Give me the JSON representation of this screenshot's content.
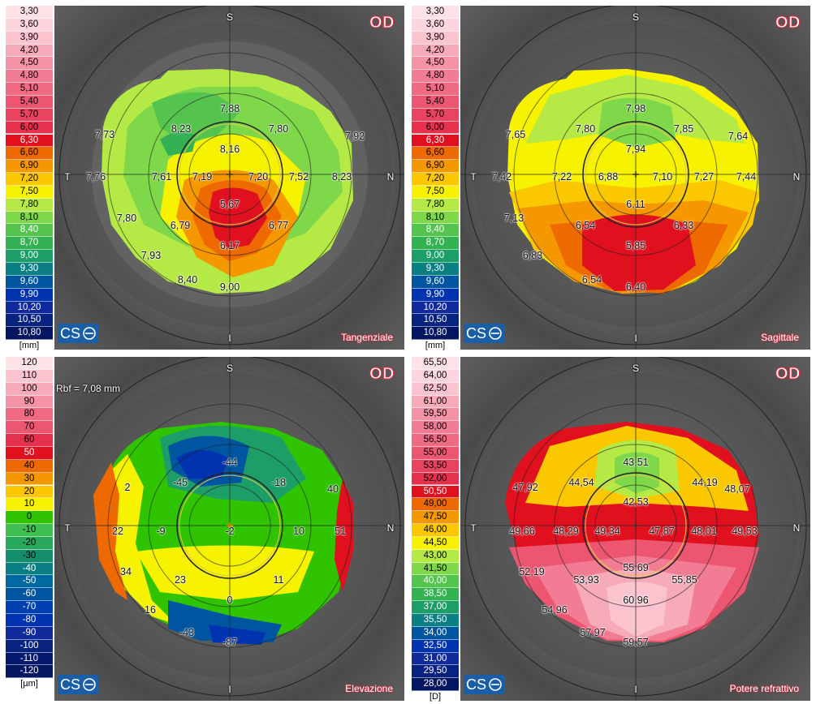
{
  "panels": [
    {
      "title": "Tangenziale",
      "eye": "OD",
      "brand": "CS",
      "unit": "[mm]",
      "scale_values": [
        "3,30",
        "3,60",
        "3,90",
        "4,20",
        "4,50",
        "4,80",
        "5,10",
        "5,40",
        "5,70",
        "6,00",
        "6,30",
        "6,60",
        "6,90",
        "7,20",
        "7,50",
        "7,80",
        "8,10",
        "8,40",
        "8,70",
        "9,00",
        "9,30",
        "9,60",
        "9,90",
        "10,20",
        "10,50",
        "10,80"
      ],
      "axes": {
        "top": "S",
        "bottom": "I",
        "left": "T",
        "right": "N"
      },
      "labels": [
        "7,88",
        "8,23",
        "7,80",
        "7,73",
        "7,92",
        "8,16",
        "7,76",
        "7,61",
        "7,19",
        "7,20",
        "7,52",
        "8,23",
        "5,67",
        "6,79",
        "6,77",
        "7,80",
        "6,17",
        "7,93",
        "8,40",
        "9,00"
      ]
    },
    {
      "title": "Sagittale",
      "eye": "OD",
      "brand": "CS",
      "unit": "[mm]",
      "scale_values": [
        "3,30",
        "3,60",
        "3,90",
        "4,20",
        "4,50",
        "4,80",
        "5,10",
        "5,40",
        "5,70",
        "6,00",
        "6,30",
        "6,60",
        "6,90",
        "7,20",
        "7,50",
        "7,80",
        "8,10",
        "8,40",
        "8,70",
        "9,00",
        "9,30",
        "9,60",
        "9,90",
        "10,20",
        "10,50",
        "10,80"
      ],
      "axes": {
        "top": "S",
        "bottom": "I",
        "left": "T",
        "right": "N"
      },
      "labels": [
        "7,98",
        "7,65",
        "7,80",
        "7,85",
        "7,64",
        "7,94",
        "7,42",
        "7,22",
        "6,88",
        "7,10",
        "7,27",
        "7,44",
        "6,11",
        "7,13",
        "6,54",
        "6,33",
        "5,85",
        "6,83",
        "6,54",
        "6,40"
      ]
    },
    {
      "title": "Elevazione",
      "eye": "OD",
      "brand": "CS",
      "unit": "[µm]",
      "rbf": "Rbf = 7,08 mm",
      "scale_values": [
        "120",
        "110",
        "100",
        "90",
        "80",
        "70",
        "60",
        "50",
        "40",
        "30",
        "20",
        "10",
        "0",
        "-10",
        "-20",
        "-30",
        "-40",
        "-50",
        "-60",
        "-70",
        "-80",
        "-90",
        "-100",
        "-110",
        "-120"
      ],
      "axes": {
        "top": "S",
        "bottom": "I",
        "left": "T",
        "right": "N"
      },
      "labels": [
        "-44",
        "-45",
        "-18",
        "2",
        "40",
        "22",
        "-9",
        "-2",
        "10",
        "51",
        "34",
        "23",
        "11",
        "16",
        "0",
        "-43",
        "-87"
      ]
    },
    {
      "title": "Potere refrattivo",
      "eye": "OD",
      "brand": "CS",
      "unit": "[D]",
      "scale_values": [
        "65,50",
        "64,00",
        "62,50",
        "61,00",
        "59,50",
        "58,00",
        "56,50",
        "55,00",
        "53,50",
        "52,00",
        "50,50",
        "49,00",
        "47,50",
        "46,00",
        "44,50",
        "43,00",
        "41,50",
        "40,00",
        "38,50",
        "37,00",
        "35,50",
        "34,00",
        "32,50",
        "31,00",
        "29,50",
        "28,00"
      ],
      "axes": {
        "top": "S",
        "bottom": "I",
        "left": "T",
        "right": "N"
      },
      "labels": [
        "43,51",
        "47,92",
        "44,54",
        "44,19",
        "48,07",
        "42,53",
        "49,66",
        "48,29",
        "49,34",
        "47,87",
        "48,01",
        "49,53",
        "55,69",
        "52,19",
        "53,93",
        "55,85",
        "60,96",
        "54,96",
        "57,97",
        "59,57"
      ]
    }
  ],
  "colors": {
    "scale_26": [
      "#fde2e6",
      "#fdd5dc",
      "#fbc4cf",
      "#f7aab8",
      "#f493a6",
      "#f27c93",
      "#ef6a82",
      "#ec5671",
      "#e9445f",
      "#e5314d",
      "#e0101f",
      "#ee6a00",
      "#f59800",
      "#fbc800",
      "#f6f200",
      "#b5e945",
      "#7fd74a",
      "#55c44f",
      "#34b152",
      "#1d9e68",
      "#0c7f84",
      "#0055a0",
      "#0033b0",
      "#102a9c",
      "#08237f",
      "#051660"
    ],
    "scale_25": [
      "#fde2e6",
      "#fbc4cf",
      "#f7aab8",
      "#f493a6",
      "#ef6a82",
      "#ec5671",
      "#e5314d",
      "#e0101f",
      "#ee6a00",
      "#f59800",
      "#fbc800",
      "#f6f200",
      "#2fc300",
      "#3fbf52",
      "#27a85b",
      "#158f6b",
      "#0c7f84",
      "#0069a0",
      "#0055a0",
      "#0040b0",
      "#0033b0",
      "#102a9c",
      "#08237f",
      "#051a6e",
      "#051660"
    ],
    "od": "#e8253a",
    "brand": "#1a5ea8"
  }
}
